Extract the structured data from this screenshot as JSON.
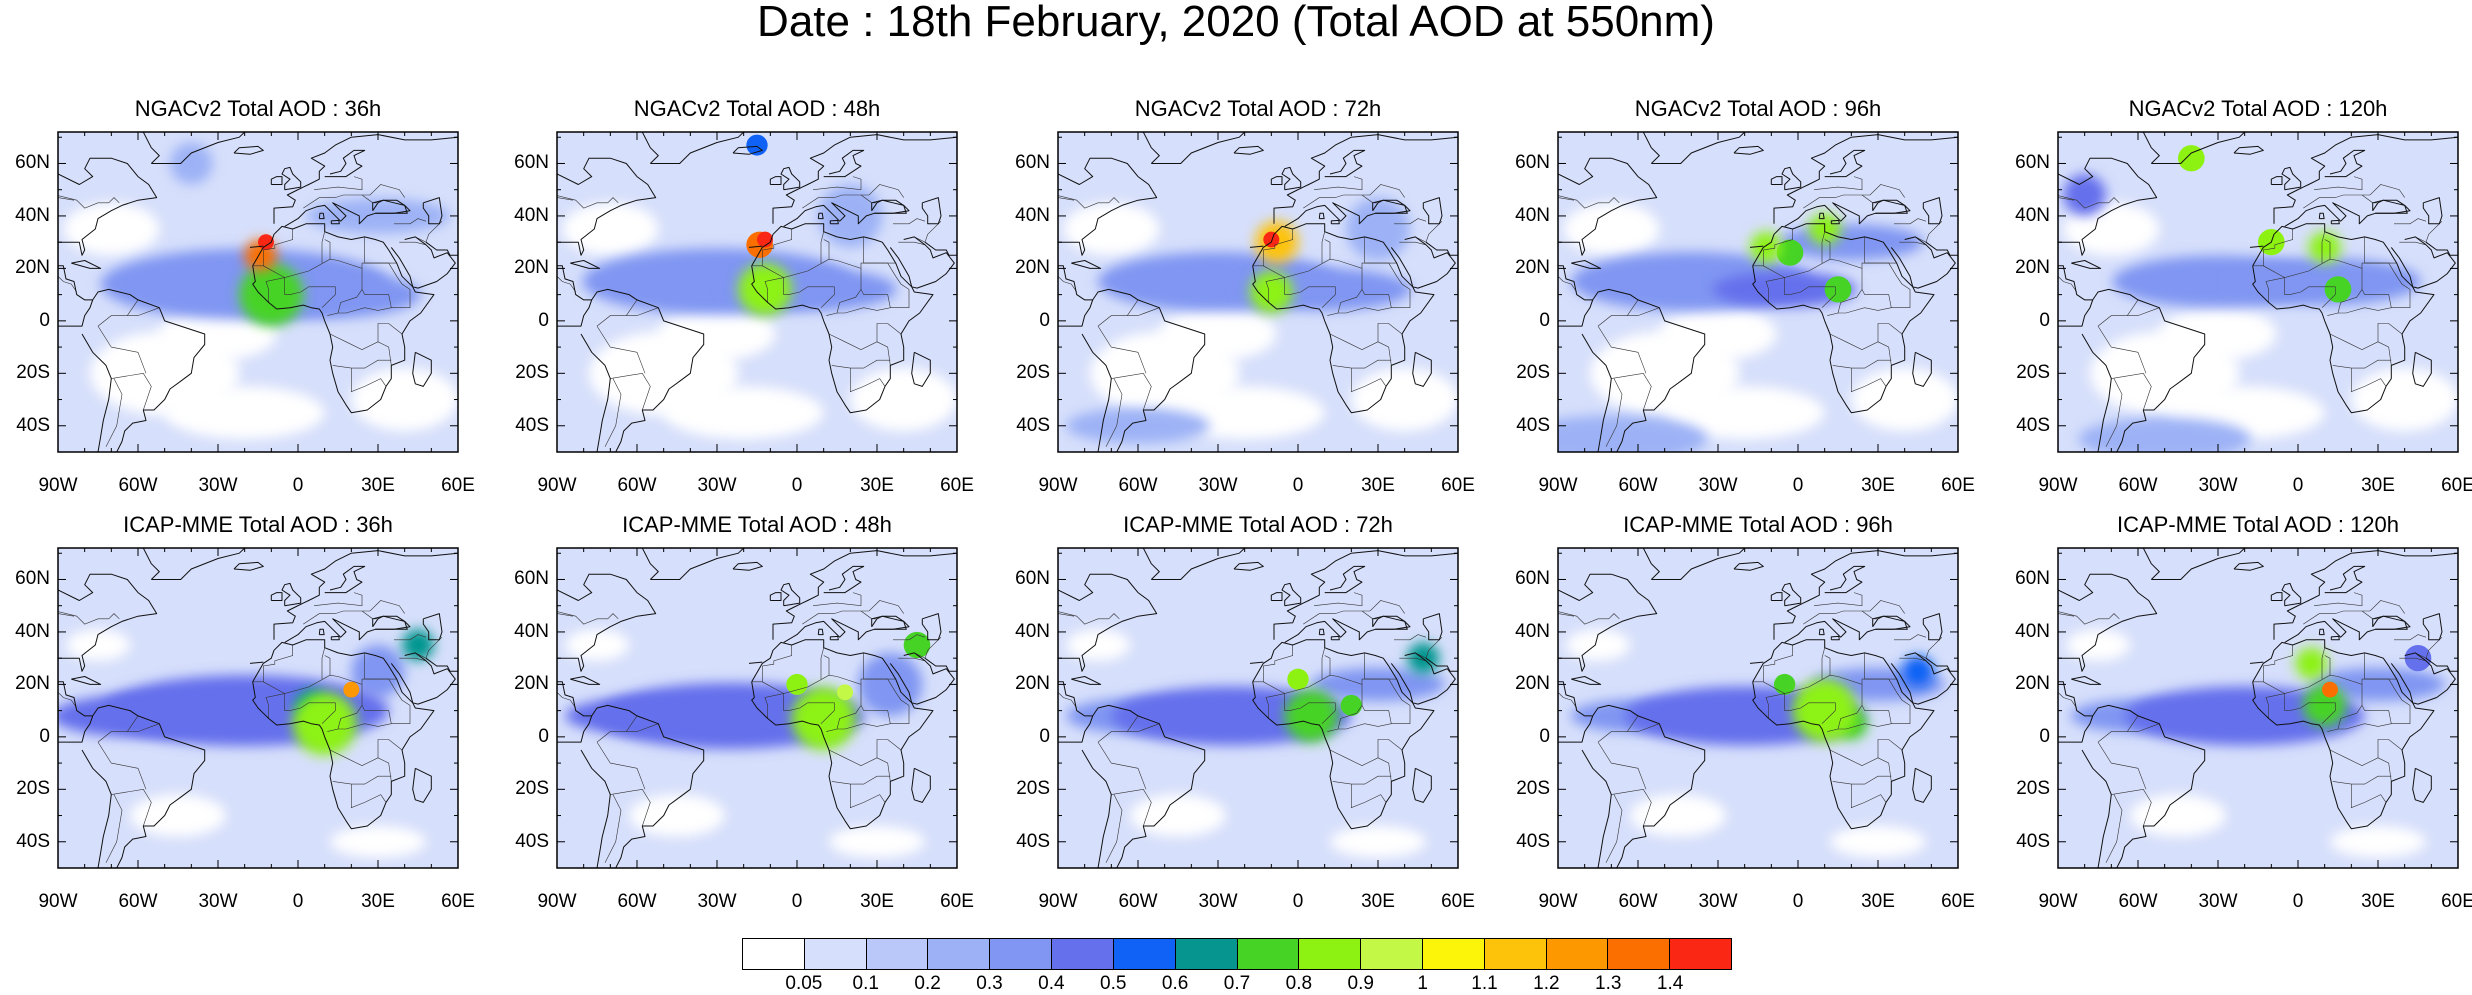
{
  "title": "Date : 18th February, 2020 (Total AOD at 550nm)",
  "panels": [
    {
      "title": "NGACv2 Total AOD : 36h",
      "model": "NGACv2",
      "lead_hours": 36,
      "features": [
        [
          -14,
          25,
          6,
          1.35
        ],
        [
          -12,
          30,
          3,
          1.45
        ],
        [
          -10,
          10,
          12,
          0.75
        ],
        [
          -20,
          14,
          30,
          0.35
        ],
        [
          10,
          10,
          20,
          0.3
        ],
        [
          30,
          40,
          15,
          0.22
        ],
        [
          -40,
          60,
          8,
          0.25
        ]
      ]
    },
    {
      "title": "NGACv2 Total AOD : 48h",
      "model": "NGACv2",
      "lead_hours": 48,
      "features": [
        [
          -14,
          29,
          5,
          1.3
        ],
        [
          -12,
          31,
          3,
          1.45
        ],
        [
          -12,
          12,
          10,
          0.8
        ],
        [
          -30,
          15,
          28,
          0.3
        ],
        [
          5,
          12,
          18,
          0.3
        ],
        [
          -15,
          67,
          4,
          0.5
        ],
        [
          20,
          40,
          12,
          0.2
        ]
      ]
    },
    {
      "title": "NGACv2 Total AOD : 72h",
      "model": "NGACv2",
      "lead_hours": 72,
      "features": [
        [
          -8,
          30,
          8,
          1.1
        ],
        [
          -10,
          31,
          3,
          1.4
        ],
        [
          -10,
          11,
          8,
          0.85
        ],
        [
          -30,
          15,
          25,
          0.3
        ],
        [
          10,
          12,
          18,
          0.3
        ],
        [
          30,
          35,
          12,
          0.25
        ],
        [
          -60,
          -40,
          15,
          0.25
        ]
      ]
    },
    {
      "title": "NGACv2 Total AOD : 96h",
      "model": "NGACv2",
      "lead_hours": 96,
      "features": [
        [
          -12,
          28,
          6,
          0.85
        ],
        [
          10,
          35,
          6,
          0.8
        ],
        [
          -3,
          26,
          5,
          0.75
        ],
        [
          15,
          12,
          5,
          0.75
        ],
        [
          20,
          30,
          15,
          0.35
        ],
        [
          -5,
          12,
          15,
          0.4
        ],
        [
          -40,
          15,
          25,
          0.3
        ],
        [
          -70,
          -45,
          20,
          0.25
        ]
      ]
    },
    {
      "title": "NGACv2 Total AOD : 120h",
      "model": "NGACv2",
      "lead_hours": 120,
      "features": [
        [
          -40,
          62,
          5,
          0.85
        ],
        [
          -10,
          30,
          5,
          0.8
        ],
        [
          10,
          28,
          6,
          0.8
        ],
        [
          15,
          12,
          5,
          0.75
        ],
        [
          -30,
          15,
          22,
          0.3
        ],
        [
          10,
          15,
          20,
          0.35
        ],
        [
          -80,
          48,
          8,
          0.4
        ],
        [
          -50,
          -45,
          18,
          0.25
        ]
      ]
    },
    {
      "title": "ICAP-MME Total AOD : 36h",
      "model": "ICAP-MME",
      "lead_hours": 36,
      "features": [
        [
          10,
          5,
          12,
          0.8
        ],
        [
          20,
          18,
          3,
          1.25
        ],
        [
          5,
          12,
          6,
          0.6
        ],
        [
          -20,
          10,
          30,
          0.45
        ],
        [
          -60,
          8,
          18,
          0.4
        ],
        [
          45,
          35,
          6,
          0.6
        ],
        [
          30,
          25,
          10,
          0.3
        ]
      ]
    },
    {
      "title": "ICAP-MME Total AOD : 48h",
      "model": "ICAP-MME",
      "lead_hours": 48,
      "features": [
        [
          10,
          7,
          12,
          0.8
        ],
        [
          18,
          17,
          3,
          0.95
        ],
        [
          0,
          20,
          4,
          0.8
        ],
        [
          -25,
          8,
          28,
          0.45
        ],
        [
          -60,
          8,
          15,
          0.4
        ],
        [
          45,
          35,
          5,
          0.7
        ],
        [
          35,
          20,
          12,
          0.3
        ]
      ]
    },
    {
      "title": "ICAP-MME Total AOD : 72h",
      "model": "ICAP-MME",
      "lead_hours": 72,
      "features": [
        [
          5,
          8,
          10,
          0.75
        ],
        [
          0,
          22,
          4,
          0.8
        ],
        [
          20,
          12,
          4,
          0.75
        ],
        [
          -25,
          8,
          25,
          0.45
        ],
        [
          -60,
          8,
          15,
          0.35
        ],
        [
          47,
          30,
          6,
          0.65
        ],
        [
          30,
          20,
          14,
          0.3
        ]
      ]
    },
    {
      "title": "ICAP-MME Total AOD : 96h",
      "model": "ICAP-MME",
      "lead_hours": 96,
      "features": [
        [
          10,
          10,
          12,
          0.8
        ],
        [
          -5,
          20,
          4,
          0.75
        ],
        [
          20,
          5,
          6,
          0.7
        ],
        [
          -20,
          8,
          25,
          0.45
        ],
        [
          -60,
          8,
          14,
          0.35
        ],
        [
          45,
          25,
          6,
          0.5
        ],
        [
          30,
          20,
          14,
          0.3
        ]
      ]
    },
    {
      "title": "ICAP-MME Total AOD : 120h",
      "model": "ICAP-MME",
      "lead_hours": 120,
      "features": [
        [
          5,
          28,
          6,
          0.8
        ],
        [
          12,
          18,
          3,
          1.3
        ],
        [
          10,
          12,
          8,
          0.75
        ],
        [
          -20,
          8,
          25,
          0.45
        ],
        [
          -60,
          8,
          14,
          0.35
        ],
        [
          45,
          30,
          5,
          0.45
        ],
        [
          30,
          20,
          14,
          0.3
        ]
      ]
    }
  ],
  "axes": {
    "lat_ticks": [
      "60N",
      "40N",
      "20N",
      "0",
      "20S",
      "40S"
    ],
    "lat_values": [
      60,
      40,
      20,
      0,
      -20,
      -40
    ],
    "lon_ticks": [
      "90W",
      "60W",
      "30W",
      "0",
      "30E",
      "60E"
    ],
    "lon_values": [
      -90,
      -60,
      -30,
      0,
      30,
      60
    ],
    "lon_range": [
      -90,
      60
    ],
    "lat_range": [
      -50,
      72
    ]
  },
  "colorbar": {
    "labels": [
      "0.05",
      "0.1",
      "0.2",
      "0.3",
      "0.4",
      "0.5",
      "0.6",
      "0.7",
      "0.8",
      "0.9",
      "1",
      "1.1",
      "1.2",
      "1.3",
      "1.4"
    ],
    "levels": [
      0.05,
      0.1,
      0.2,
      0.3,
      0.4,
      0.5,
      0.6,
      0.7,
      0.8,
      0.9,
      1.0,
      1.1,
      1.2,
      1.3,
      1.4
    ],
    "colors": [
      "#ffffff",
      "#d6dffb",
      "#b9c8f8",
      "#9db2f6",
      "#8096f2",
      "#6570ec",
      "#0f62f5",
      "#06958f",
      "#46d326",
      "#8df212",
      "#c4f846",
      "#fcf509",
      "#fdc20a",
      "#fd9800",
      "#fb6f00",
      "#fa2714"
    ]
  }
}
